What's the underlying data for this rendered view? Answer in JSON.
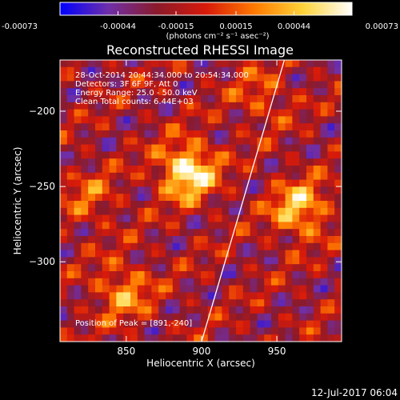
{
  "chart_data": {
    "type": "heatmap",
    "title": "Reconstructed RHESSI Image",
    "xlabel": "Heliocentric X (arcsec)",
    "ylabel": "Heliocentric Y (arcsec)",
    "xlim": [
      806,
      993
    ],
    "ylim": [
      -353,
      -166
    ],
    "x_ticks": [
      850,
      900,
      950
    ],
    "y_ticks": [
      -200,
      -250,
      -300
    ],
    "x_tick_labels": [
      "850",
      "900",
      "950"
    ],
    "y_tick_labels": [
      "−200",
      "−250",
      "−300"
    ],
    "colorbar": {
      "range": [
        -0.00073,
        0.00073
      ],
      "ticks": [
        -0.00073,
        -0.00044,
        -0.00015,
        0.00015,
        0.00044,
        0.00073
      ],
      "tick_labels": [
        "-0.00073",
        "-0.00044",
        "-0.00015",
        "0.00015",
        "0.00044",
        "0.00073"
      ],
      "units_line": "(photons cm⁻² s⁻¹ asec⁻²)",
      "colors": [
        "#0000ff",
        "#6f2fa8",
        "#8b1a2a",
        "#d81a0a",
        "#ff7a00",
        "#ffd43a",
        "#ffffff"
      ]
    },
    "info_lines": [
      "28-Oct-2014 20:44:34.000 to 20:54:34.000",
      "Detectors: 3F 6F 9F, Att 0",
      "Energy Range: 25.0 - 50.0 keV",
      "Clean    Total counts: 6.44E+03"
    ],
    "peak_label": "Position of Peak = [891,-240]",
    "peak": [
      891,
      -240
    ],
    "sources": [
      {
        "x": 891,
        "y": -240,
        "strength": 1.0
      },
      {
        "x": 965,
        "y": -265,
        "strength": 0.75
      },
      {
        "x": 848,
        "y": -320,
        "strength": 0.55
      },
      {
        "x": 940,
        "y": -190,
        "strength": 0.35
      },
      {
        "x": 826,
        "y": -258,
        "strength": 0.35
      }
    ],
    "limb_line": [
      [
        955,
        -166
      ],
      [
        900,
        -353
      ]
    ],
    "grid": false,
    "background": "#000000"
  },
  "footer": {
    "timestamp": "12-Jul-2017 06:04"
  }
}
